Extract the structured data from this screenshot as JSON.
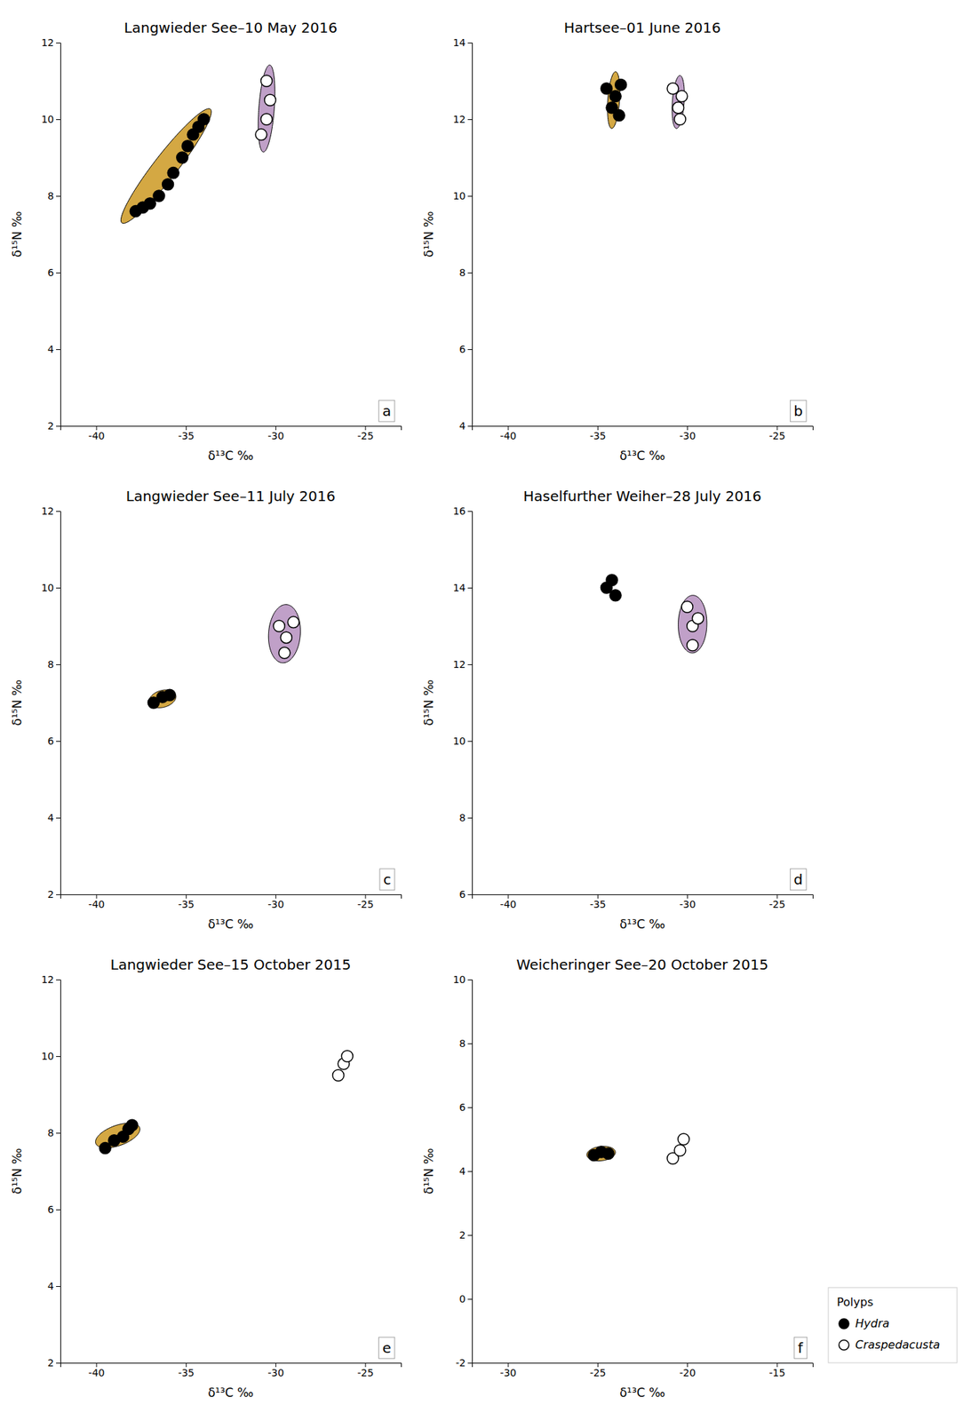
{
  "chart_data": [
    {
      "type": "scatter",
      "title": "Langwieder See–10 May 2016",
      "annotation": "a",
      "x_label": "δ¹³C ‰",
      "y_label": "δ¹⁵N ‰",
      "xlim": [
        -42,
        -23
      ],
      "ylim": [
        2,
        12
      ],
      "xticks": [
        -40,
        -35,
        -30,
        -25
      ],
      "yticks": [
        2,
        4,
        6,
        8,
        10,
        12
      ],
      "series": [
        {
          "name": "Hydra",
          "color": "#000000",
          "marker": "circle",
          "x": [
            -37.8,
            -37.4,
            -37.0,
            -36.5,
            -36.0,
            -35.7,
            -35.2,
            -34.9,
            -34.6,
            -34.3,
            -34.0
          ],
          "values": [
            7.6,
            7.7,
            7.8,
            8.0,
            8.3,
            8.6,
            9.0,
            9.3,
            9.6,
            9.8,
            10.0
          ],
          "ellipse": {
            "x": -36.1,
            "y": 8.78,
            "width": 5.8,
            "height": 0.85,
            "angle": 30,
            "color": "#D4A843"
          }
        },
        {
          "name": "Craspedacusta",
          "color": "#ffffff",
          "marker": "circle",
          "x": [
            -30.8,
            -30.5,
            -30.3,
            -30.5
          ],
          "values": [
            9.6,
            10.0,
            10.5,
            11.0
          ],
          "ellipse": {
            "x": -30.5,
            "y": 10.28,
            "width": 2.3,
            "height": 0.85,
            "angle": 80,
            "color": "#C0A0C8"
          }
        }
      ]
    },
    {
      "type": "scatter",
      "title": "Hartsee–01 June 2016",
      "annotation": "b",
      "x_label": "δ¹³C ‰",
      "y_label": "δ¹⁵N ‰",
      "xlim": [
        -42,
        -23
      ],
      "ylim": [
        4,
        14
      ],
      "xticks": [
        -40,
        -35,
        -30,
        -25
      ],
      "yticks": [
        4,
        6,
        8,
        10,
        12,
        14
      ],
      "series": [
        {
          "name": "Hydra",
          "color": "#000000",
          "marker": "circle",
          "x": [
            -34.5,
            -34.2,
            -34.0,
            -33.8,
            -33.7
          ],
          "values": [
            12.8,
            12.3,
            12.6,
            12.1,
            12.9
          ],
          "ellipse": {
            "x": -34.1,
            "y": 12.5,
            "width": 1.5,
            "height": 0.65,
            "angle": 80,
            "color": "#D4A843"
          }
        },
        {
          "name": "Craspedacusta",
          "color": "#ffffff",
          "marker": "circle",
          "x": [
            -30.8,
            -30.5,
            -30.3,
            -30.4
          ],
          "values": [
            12.8,
            12.3,
            12.6,
            12.0
          ],
          "ellipse": {
            "x": -30.5,
            "y": 12.45,
            "width": 1.4,
            "height": 0.65,
            "angle": 80,
            "color": "#C0A0C8"
          }
        }
      ]
    },
    {
      "type": "scatter",
      "title": "Langwieder See–11 July 2016",
      "annotation": "c",
      "x_label": "δ¹³C ‰",
      "y_label": "δ¹⁵N ‰",
      "xlim": [
        -42,
        -23
      ],
      "ylim": [
        2,
        12
      ],
      "xticks": [
        -40,
        -35,
        -30,
        -25
      ],
      "yticks": [
        2,
        4,
        6,
        8,
        10,
        12
      ],
      "series": [
        {
          "name": "Hydra",
          "color": "#000000",
          "marker": "circle",
          "x": [
            -36.8,
            -36.3,
            -35.9
          ],
          "values": [
            7.0,
            7.15,
            7.2
          ],
          "ellipse": {
            "x": -36.3,
            "y": 7.1,
            "width": 1.5,
            "height": 0.45,
            "angle": 5,
            "color": "#D4A843"
          }
        },
        {
          "name": "Craspedacusta",
          "color": "#ffffff",
          "marker": "circle",
          "x": [
            -29.8,
            -29.4,
            -29.0,
            -29.5
          ],
          "values": [
            9.0,
            8.7,
            9.1,
            8.3
          ],
          "ellipse": {
            "x": -29.5,
            "y": 8.8,
            "width": 1.8,
            "height": 1.5,
            "angle": 15,
            "color": "#C0A0C8"
          }
        }
      ]
    },
    {
      "type": "scatter",
      "title": "Haselfurther Weiher–28 July 2016",
      "annotation": "d",
      "x_label": "δ¹³C ‰",
      "y_label": "δ¹⁵N ‰",
      "xlim": [
        -42,
        -23
      ],
      "ylim": [
        6,
        16
      ],
      "xticks": [
        -40,
        -35,
        -30,
        -25
      ],
      "yticks": [
        6,
        8,
        10,
        12,
        14,
        16
      ],
      "series": [
        {
          "name": "Hydra",
          "color": "#000000",
          "marker": "circle",
          "x": [
            -34.5,
            -34.2,
            -34.0
          ],
          "values": [
            14.0,
            14.2,
            13.8
          ]
        },
        {
          "name": "Craspedacusta",
          "color": "#ffffff",
          "marker": "circle",
          "x": [
            -30.0,
            -29.7,
            -29.4,
            -29.7
          ],
          "values": [
            13.5,
            13.0,
            13.2,
            12.5
          ],
          "ellipse": {
            "x": -29.7,
            "y": 13.05,
            "width": 1.6,
            "height": 1.5,
            "angle": 10,
            "color": "#C0A0C8"
          }
        }
      ]
    },
    {
      "type": "scatter",
      "title": "Langwieder See–15 October 2015",
      "annotation": "e",
      "x_label": "δ¹³C ‰",
      "y_label": "δ¹⁵N ‰",
      "xlim": [
        -42,
        -23
      ],
      "ylim": [
        2,
        12
      ],
      "xticks": [
        -40,
        -35,
        -30,
        -25
      ],
      "yticks": [
        2,
        4,
        6,
        8,
        10,
        12
      ],
      "series": [
        {
          "name": "Hydra",
          "color": "#000000",
          "marker": "circle",
          "x": [
            -39.5,
            -39.0,
            -38.5,
            -38.2,
            -38.0
          ],
          "values": [
            7.6,
            7.8,
            7.9,
            8.1,
            8.2
          ],
          "ellipse": {
            "x": -38.8,
            "y": 7.93,
            "width": 2.5,
            "height": 0.55,
            "angle": 8,
            "color": "#D4A843"
          }
        },
        {
          "name": "Craspedacusta",
          "color": "#ffffff",
          "marker": "circle",
          "x": [
            -26.5,
            -26.2,
            -26.0
          ],
          "values": [
            9.5,
            9.8,
            10.0
          ]
        }
      ]
    },
    {
      "type": "scatter",
      "title": "Weicheringer See–20 October 2015",
      "annotation": "f",
      "x_label": "δ¹³C ‰",
      "y_label": "δ¹⁵N ‰",
      "xlim": [
        -32,
        -13
      ],
      "ylim": [
        -2,
        10
      ],
      "xticks": [
        -30,
        -25,
        -20,
        -15
      ],
      "yticks": [
        -2,
        0,
        2,
        4,
        6,
        8,
        10
      ],
      "legend": "right",
      "legend_title": "Polyps",
      "series": [
        {
          "name": "Hydra",
          "color": "#000000",
          "marker": "circle",
          "x": [
            -25.2,
            -24.8,
            -24.4
          ],
          "values": [
            4.5,
            4.6,
            4.55
          ],
          "ellipse": {
            "x": -24.8,
            "y": 4.55,
            "width": 1.6,
            "height": 0.45,
            "angle": 3,
            "color": "#D4A843"
          }
        },
        {
          "name": "Craspedacusta",
          "color": "#ffffff",
          "marker": "circle",
          "x": [
            -20.8,
            -20.4,
            -20.2
          ],
          "values": [
            4.4,
            4.65,
            5.0
          ]
        }
      ]
    }
  ]
}
